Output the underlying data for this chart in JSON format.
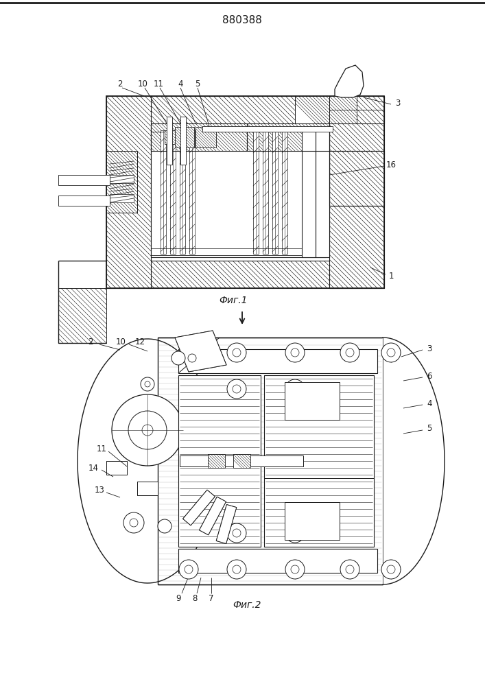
{
  "title": "880388",
  "fig1_caption": "Фиг.1",
  "fig2_caption": "Фиг.2",
  "bg_color": "#ffffff",
  "lc": "#1a1a1a",
  "fig_width": 7.07,
  "fig_height": 10.0,
  "lfs": 8.5
}
